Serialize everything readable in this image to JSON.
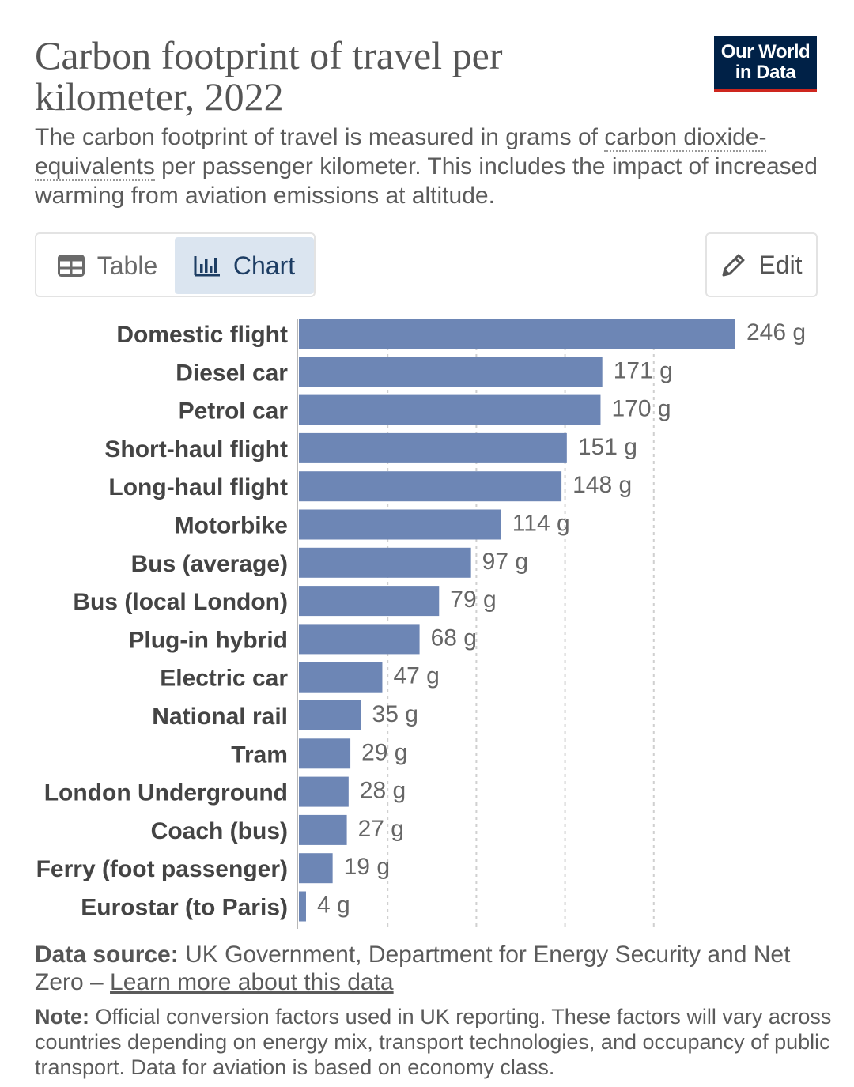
{
  "header": {
    "title": "Carbon footprint of travel per kilometer, 2022",
    "subtitle_part1": "The carbon footprint of travel is measured in grams of ",
    "subtitle_link": "carbon dioxide-equivalents",
    "subtitle_part2": " per passenger kilometer. This includes the impact of increased warming from aviation emissions at altitude.",
    "logo_line1": "Our World",
    "logo_line2": "in Data",
    "logo_color": "#002147",
    "logo_accent": "#ce261e"
  },
  "tabs": {
    "table_label": "Table",
    "chart_label": "Chart",
    "active": "Chart",
    "edit_label": "Edit"
  },
  "chart_data": {
    "type": "bar",
    "orientation": "horizontal",
    "categories": [
      "Domestic flight",
      "Diesel car",
      "Petrol car",
      "Short-haul flight",
      "Long-haul flight",
      "Motorbike",
      "Bus (average)",
      "Bus (local London)",
      "Plug-in hybrid",
      "Electric car",
      "National rail",
      "Tram",
      "London Underground",
      "Coach (bus)",
      "Ferry (foot passenger)",
      "Eurostar (to Paris)"
    ],
    "values": [
      246,
      171,
      170,
      151,
      148,
      114,
      97,
      79,
      68,
      47,
      35,
      29,
      28,
      27,
      19,
      4
    ],
    "value_labels": [
      "246 g",
      "171 g",
      "170 g",
      "151 g",
      "148 g",
      "114 g",
      "97 g",
      "79 g",
      "68 g",
      "47 g",
      "35 g",
      "29 g",
      "28 g",
      "27 g",
      "19 g",
      "4 g"
    ],
    "xlim": [
      0,
      246
    ],
    "gridlines": [
      50,
      100,
      150,
      200
    ],
    "grid": true,
    "bar_color": "#6d86b5"
  },
  "footer": {
    "source_label": "Data source:",
    "source_text": " UK Government, Department for Energy Security and Net Zero – ",
    "source_link": "Learn more about this data",
    "note_label": "Note:",
    "note_text": " Official conversion factors used in UK reporting. These factors will vary across countries depending on energy mix, transport technologies, and occupancy of public transport. Data for aviation is based on economy class."
  }
}
